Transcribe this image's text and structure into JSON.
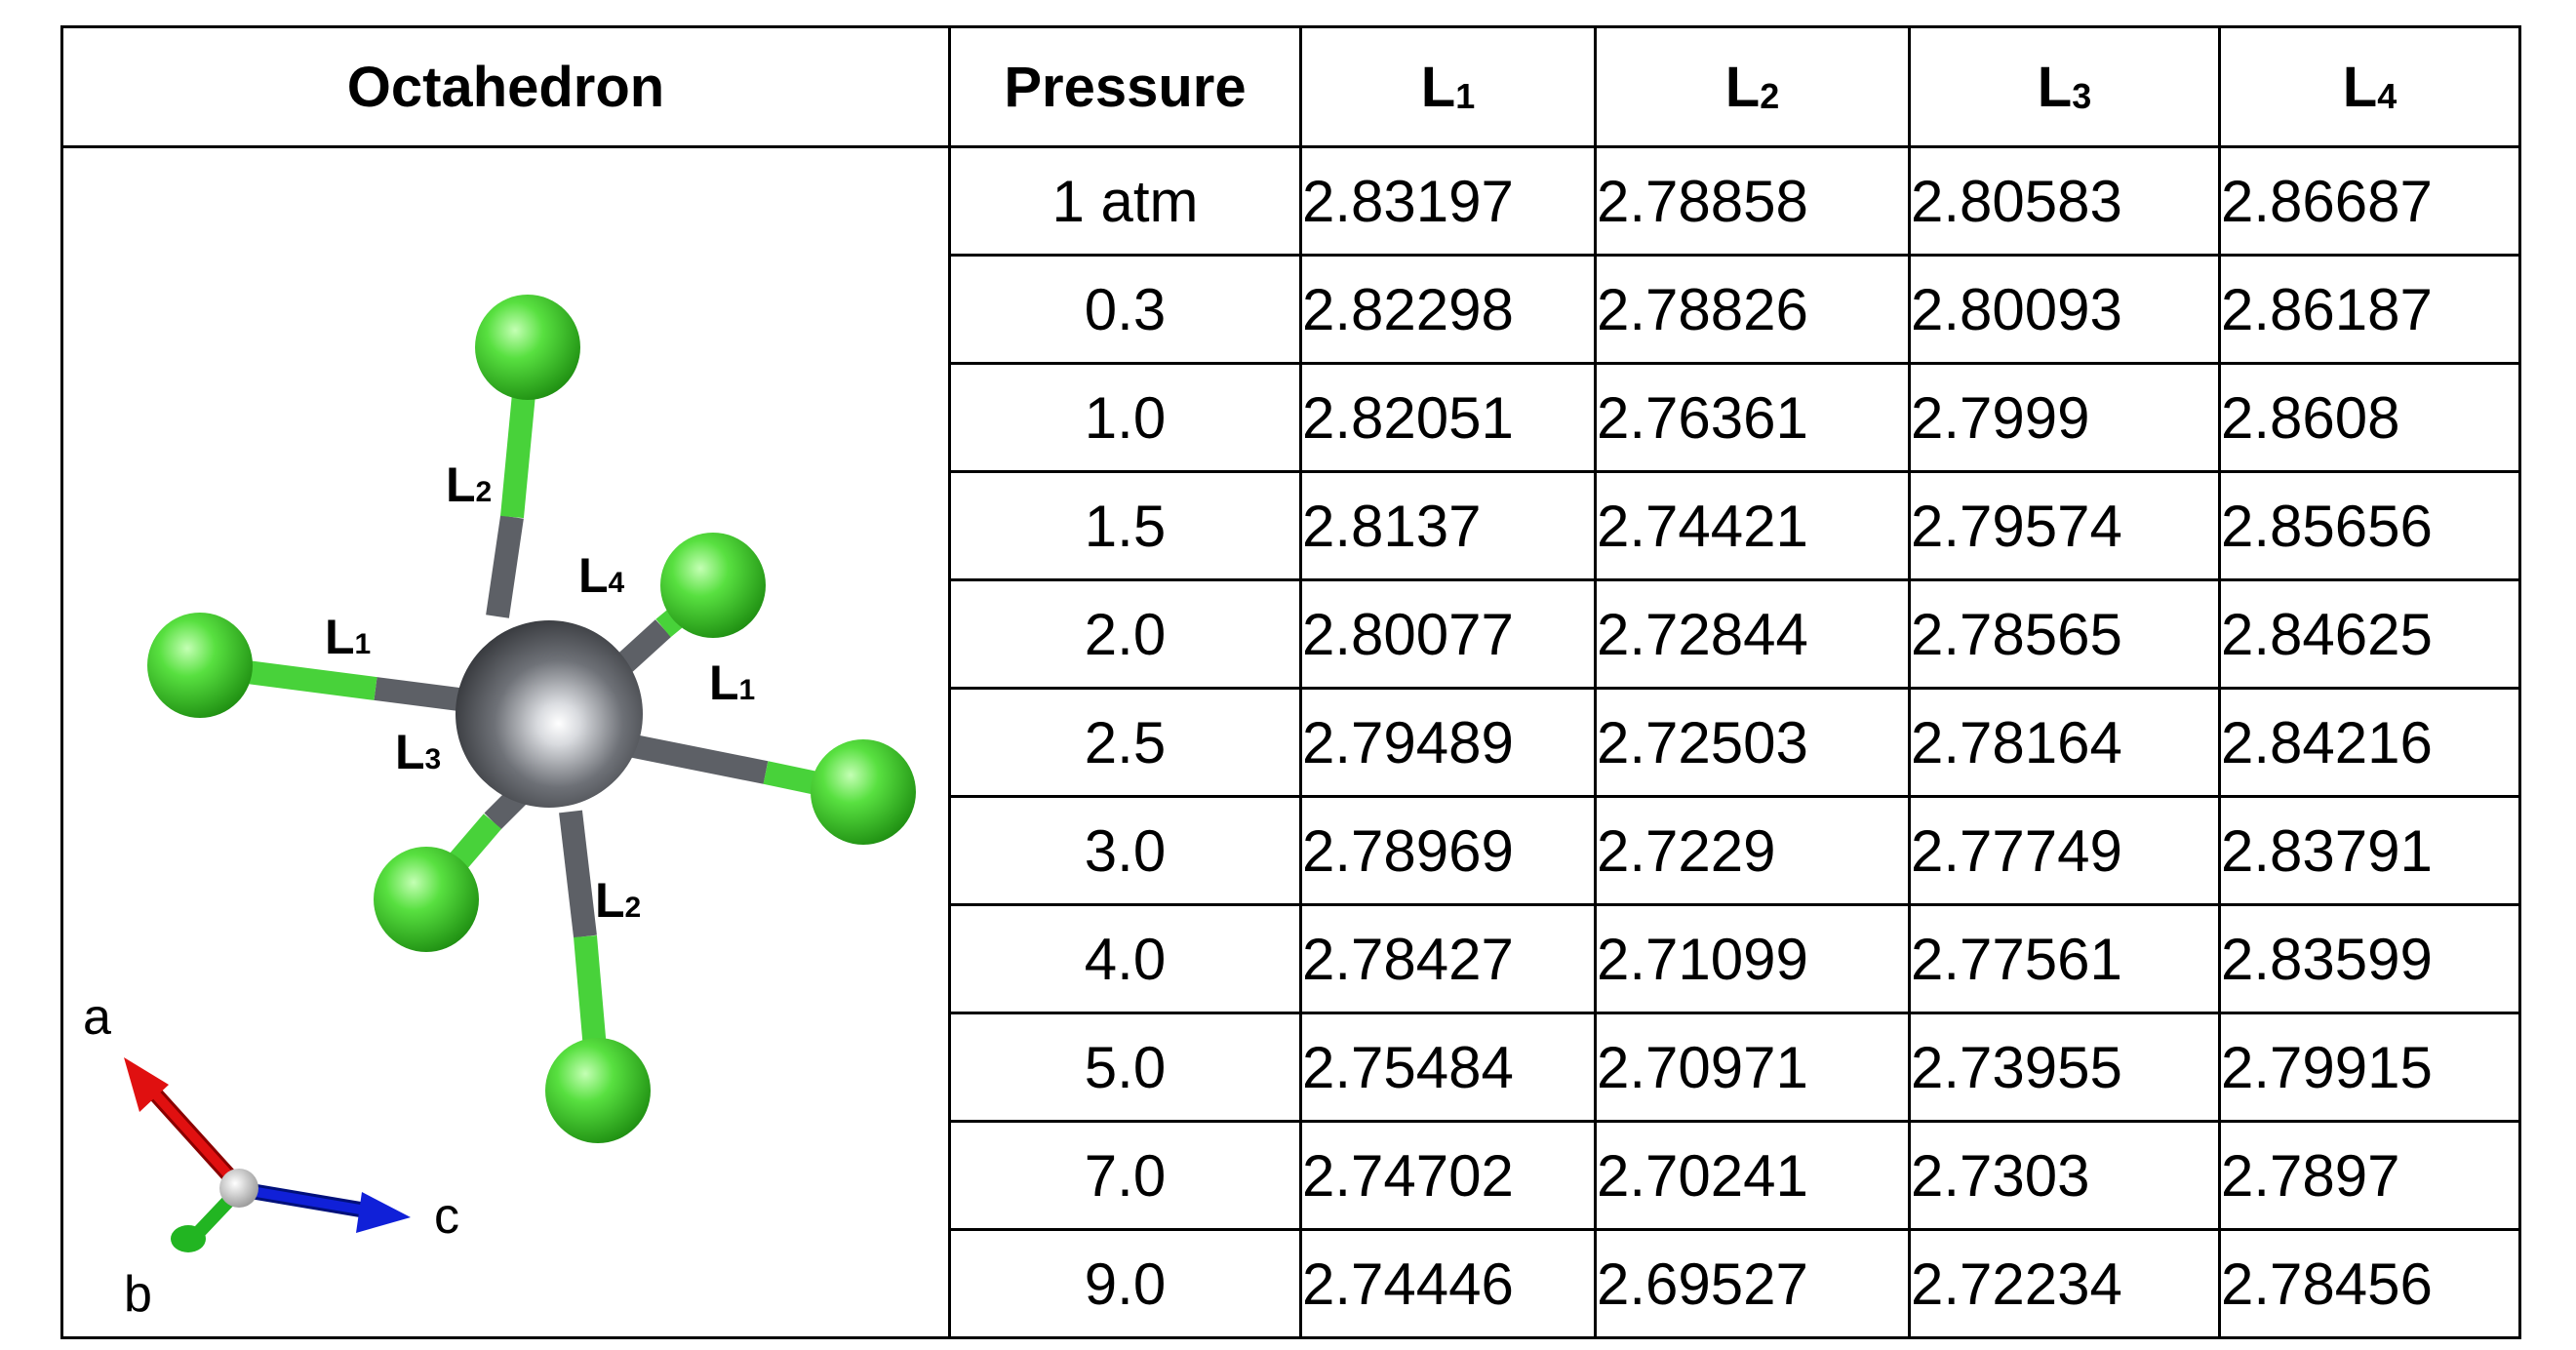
{
  "table": {
    "headers": [
      {
        "main": "Octahedron",
        "sub": ""
      },
      {
        "main": "Pressure",
        "sub": ""
      },
      {
        "main": "L",
        "sub": "1"
      },
      {
        "main": "L",
        "sub": "2"
      },
      {
        "main": "L",
        "sub": "3"
      },
      {
        "main": "L",
        "sub": "4"
      }
    ],
    "rows": [
      {
        "pressure": "1 atm",
        "L1": "2.83197",
        "L2": "2.78858",
        "L3": "2.80583",
        "L4": "2.86687"
      },
      {
        "pressure": "0.3",
        "L1": "2.82298",
        "L2": "2.78826",
        "L3": "2.80093",
        "L4": "2.86187"
      },
      {
        "pressure": "1.0",
        "L1": "2.82051",
        "L2": "2.76361",
        "L3": "2.7999",
        "L4": "2.8608"
      },
      {
        "pressure": "1.5",
        "L1": "2.8137",
        "L2": "2.74421",
        "L3": "2.79574",
        "L4": "2.85656"
      },
      {
        "pressure": "2.0",
        "L1": "2.80077",
        "L2": "2.72844",
        "L3": "2.78565",
        "L4": "2.84625"
      },
      {
        "pressure": "2.5",
        "L1": "2.79489",
        "L2": "2.72503",
        "L3": "2.78164",
        "L4": "2.84216"
      },
      {
        "pressure": "3.0",
        "L1": "2.78969",
        "L2": "2.7229",
        "L3": "2.77749",
        "L4": "2.83791"
      },
      {
        "pressure": "4.0",
        "L1": "2.78427",
        "L2": "2.71099",
        "L3": "2.77561",
        "L4": "2.83599"
      },
      {
        "pressure": "5.0",
        "L1": "2.75484",
        "L2": "2.70971",
        "L3": "2.73955",
        "L4": "2.79915"
      },
      {
        "pressure": "7.0",
        "L1": "2.74702",
        "L2": "2.70241",
        "L3": "2.7303",
        "L4": "2.7897"
      },
      {
        "pressure": "9.0",
        "L1": "2.74446",
        "L2": "2.69527",
        "L3": "2.72234",
        "L4": "2.78456"
      }
    ]
  },
  "figure": {
    "bond_labels": [
      {
        "main": "L",
        "sub": "2"
      },
      {
        "main": "L",
        "sub": "4"
      },
      {
        "main": "L",
        "sub": "1"
      },
      {
        "main": "L",
        "sub": "1"
      },
      {
        "main": "L",
        "sub": "3"
      },
      {
        "main": "L",
        "sub": "2"
      }
    ],
    "axes": {
      "a": "a",
      "b": "b",
      "c": "c"
    },
    "colors": {
      "central_atom": "#5d6066",
      "ligand_atom": "#48d23a",
      "axis_a": "#e01010",
      "axis_b": "#22b522",
      "axis_c": "#1020d8"
    }
  }
}
